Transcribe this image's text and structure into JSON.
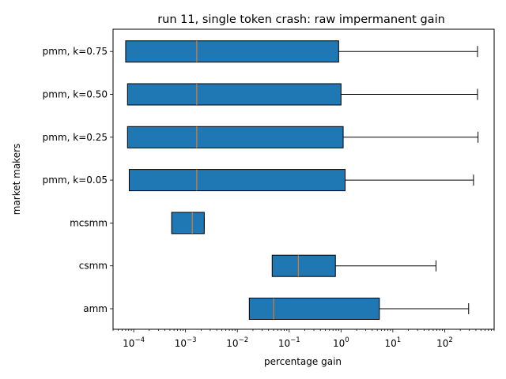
{
  "chart_data": {
    "type": "boxplot-horizontal",
    "title": "run 11, single token crash: raw impermanent gain",
    "xlabel": "percentage gain",
    "ylabel": "market makers",
    "x_scale": "log",
    "xlim": [
      4e-05,
      900
    ],
    "x_ticks": [
      {
        "value": 0.0001,
        "base": "10",
        "exp": "−4"
      },
      {
        "value": 0.001,
        "base": "10",
        "exp": "−3"
      },
      {
        "value": 0.01,
        "base": "10",
        "exp": "−2"
      },
      {
        "value": 0.1,
        "base": "10",
        "exp": "−1"
      },
      {
        "value": 1,
        "base": "10",
        "exp": "0"
      },
      {
        "value": 10,
        "base": "10",
        "exp": "1"
      },
      {
        "value": 100,
        "base": "10",
        "exp": "2"
      }
    ],
    "box_color": "#1f77b4",
    "median_color": "#ff7f0e",
    "categories": [
      "amm",
      "csmm",
      "mcsmm",
      "pmm, k=0.05",
      "pmm, k=0.25",
      "pmm, k=0.50",
      "pmm, k=0.75"
    ],
    "boxes": [
      {
        "label": "amm",
        "whisker_low": 0.017,
        "q1": 0.017,
        "median": 0.05,
        "q3": 5.5,
        "whisker_high": 290
      },
      {
        "label": "csmm",
        "whisker_low": 0.047,
        "q1": 0.047,
        "median": 0.15,
        "q3": 0.78,
        "whisker_high": 68
      },
      {
        "label": "mcsmm",
        "whisker_low": 0.00054,
        "q1": 0.00054,
        "median": 0.00135,
        "q3": 0.0023,
        "whisker_high": 0.0023
      },
      {
        "label": "pmm, k=0.05",
        "whisker_low": 8.2e-05,
        "q1": 8.2e-05,
        "median": 0.00165,
        "q3": 1.2,
        "whisker_high": 360
      },
      {
        "label": "pmm, k=0.25",
        "whisker_low": 7.6e-05,
        "q1": 7.6e-05,
        "median": 0.00165,
        "q3": 1.1,
        "whisker_high": 440
      },
      {
        "label": "pmm, k=0.50",
        "whisker_low": 7.6e-05,
        "q1": 7.6e-05,
        "median": 0.00165,
        "q3": 1.0,
        "whisker_high": 430
      },
      {
        "label": "pmm, k=0.75",
        "whisker_low": 7e-05,
        "q1": 7e-05,
        "median": 0.00165,
        "q3": 0.9,
        "whisker_high": 430
      }
    ]
  }
}
